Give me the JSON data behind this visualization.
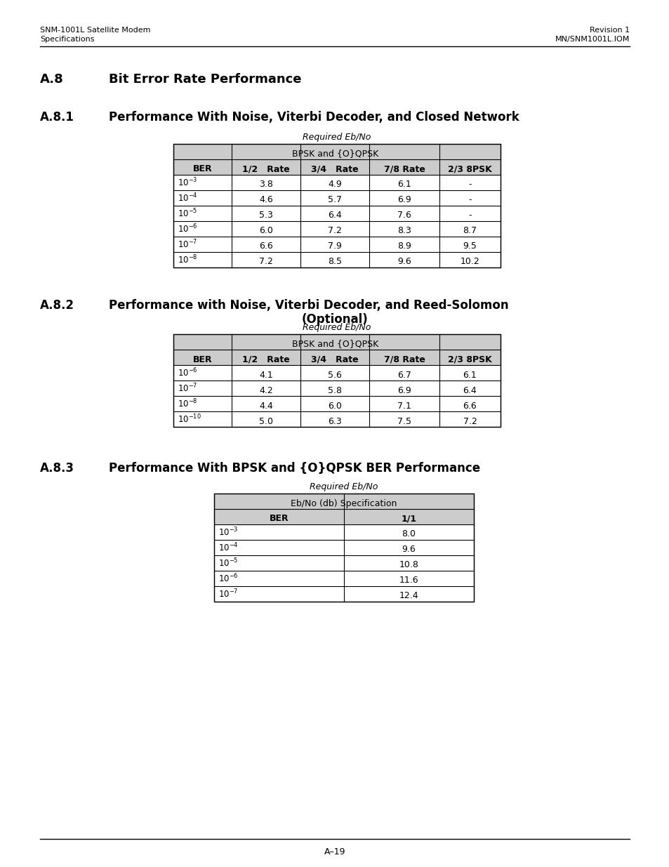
{
  "page_header_left": [
    "SNM-1001L Satellite Modem",
    "Specifications"
  ],
  "page_header_right": [
    "Revision 1",
    "MN/SNM1001L.IOM"
  ],
  "page_footer": "A–19",
  "section_num": "A.8",
  "section_title": "Bit Error Rate Performance",
  "sub1_num": "A.8.1",
  "sub1_title": "Performance With Noise, Viterbi Decoder, and Closed Network",
  "sub2_num": "A.8.2",
  "sub2_title_line1": "Performance with Noise, Viterbi Decoder, and Reed-Solomon",
  "sub2_title_line2": "(Optional)",
  "sub3_num": "A.8.3",
  "sub3_title": "Performance With BPSK and {O}QPSK BER Performance",
  "t1_caption": "Required Eb/No",
  "t1_span_header": "BPSK and {O}QPSK",
  "t1_col_headers": [
    "BER",
    "1/2   Rate",
    "3/4   Rate",
    "7/8 Rate",
    "2/3 8PSK"
  ],
  "t1_ber": [
    "10$^{-3}$",
    "10$^{-4}$",
    "10$^{-5}$",
    "10$^{-6}$",
    "10$^{-7}$",
    "10$^{-8}$"
  ],
  "t1_data": [
    [
      "3.8",
      "4.9",
      "6.1",
      "-"
    ],
    [
      "4.6",
      "5.7",
      "6.9",
      "-"
    ],
    [
      "5.3",
      "6.4",
      "7.6",
      "-"
    ],
    [
      "6.0",
      "7.2",
      "8.3",
      "8.7"
    ],
    [
      "6.6",
      "7.9",
      "8.9",
      "9.5"
    ],
    [
      "7.2",
      "8.5",
      "9.6",
      "10.2"
    ]
  ],
  "t2_caption": "Required Eb/No",
  "t2_span_header": "BPSK and {O}QPSK",
  "t2_col_headers": [
    "BER",
    "1/2   Rate",
    "3/4   Rate",
    "7/8 Rate",
    "2/3 8PSK"
  ],
  "t2_ber": [
    "10$^{-6}$",
    "10$^{-7}$",
    "10$^{-8}$",
    "10$^{-10}$"
  ],
  "t2_data": [
    [
      "4.1",
      "5.6",
      "6.7",
      "6.1"
    ],
    [
      "4.2",
      "5.8",
      "6.9",
      "6.4"
    ],
    [
      "4.4",
      "6.0",
      "7.1",
      "6.6"
    ],
    [
      "5.0",
      "6.3",
      "7.5",
      "7.2"
    ]
  ],
  "t3_caption": "Required Eb/No",
  "t3_span_header": "Eb/No (db) Specification",
  "t3_col_headers": [
    "BER",
    "1/1"
  ],
  "t3_ber": [
    "10$^{-3}$",
    "10$^{-4}$",
    "10$^{-5}$",
    "10$^{-6}$",
    "10$^{-7}$"
  ],
  "t3_data": [
    "8.0",
    "9.6",
    "10.8",
    "11.6",
    "12.4"
  ],
  "header_bg": "#cccccc",
  "bg_color": "#ffffff",
  "text_color": "#000000"
}
